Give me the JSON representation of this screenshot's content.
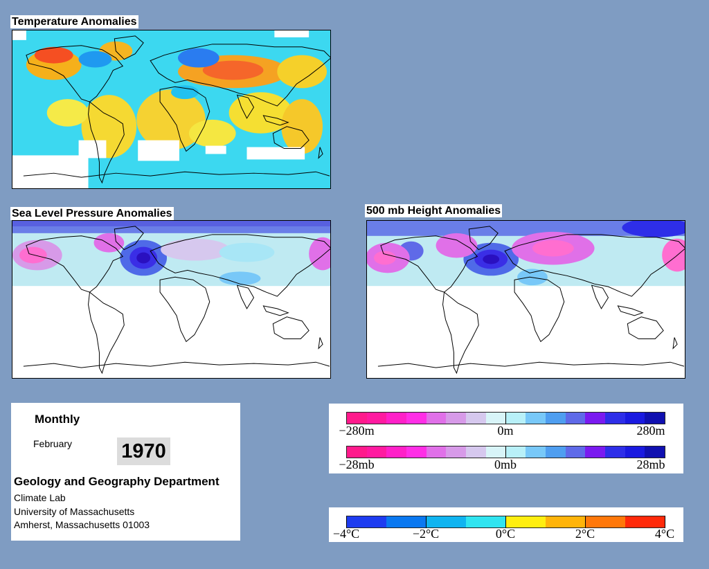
{
  "maps": {
    "temperature": {
      "title": "Temperature Anomalies"
    },
    "sea_level_pressure": {
      "title": "Sea Level Pressure Anomalies"
    },
    "height_500mb": {
      "title": "500 mb Height Anomalies"
    }
  },
  "info": {
    "period": "Monthly",
    "month": "February",
    "year": "1970",
    "department": "Geology and Geography Department",
    "lab": "Climate Lab",
    "university": "University of Massachusetts",
    "address": "Amherst, Massachusetts 01003"
  },
  "legends": {
    "height": {
      "labels": [
        "−280m",
        "0m",
        "280m"
      ],
      "colors": [
        "#ff1a8c",
        "#ff1aa0",
        "#ff20c8",
        "#ff2ee6",
        "#e070e8",
        "#d79ae8",
        "#d6c8ee",
        "#d8f4f8",
        "#b8f0f8",
        "#78c8f8",
        "#4f9ef0",
        "#5f6ae8",
        "#7a1af0",
        "#2e2ee8",
        "#1a1ae0",
        "#1010b0"
      ]
    },
    "pressure": {
      "labels": [
        "−28mb",
        "0mb",
        "28mb"
      ],
      "colors": [
        "#ff1a8c",
        "#ff1aa0",
        "#ff20c8",
        "#ff2ee6",
        "#e070e8",
        "#d79ae8",
        "#d6c8ee",
        "#d8f4f8",
        "#b8f0f8",
        "#78c8f8",
        "#4f9ef0",
        "#5f6ae8",
        "#7a1af0",
        "#2e2ee8",
        "#1a1ae0",
        "#1010b0"
      ]
    },
    "temperature": {
      "labels": [
        "−4°C",
        "−2°C",
        "0°C",
        "2°C",
        "4°C"
      ],
      "colors": [
        "#1e3cf0",
        "#0a78f0",
        "#10b4f0",
        "#30e4f0",
        "#ffee10",
        "#ffb40a",
        "#ff780a",
        "#ff2a0a"
      ]
    }
  },
  "colors": {
    "background": "#7f9cc2",
    "temperature_field": "#3cd8f0",
    "pressure_field": "#bfeaf2",
    "coastline": "#000000"
  }
}
